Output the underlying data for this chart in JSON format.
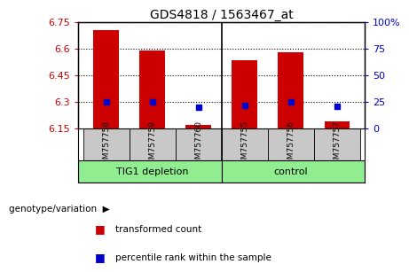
{
  "title": "GDS4818 / 1563467_at",
  "samples": [
    "GSM757758",
    "GSM757759",
    "GSM757760",
    "GSM757755",
    "GSM757756",
    "GSM757757"
  ],
  "red_values": [
    6.705,
    6.592,
    6.172,
    6.535,
    6.582,
    6.193
  ],
  "blue_values": [
    25,
    25,
    20,
    22,
    25,
    21
  ],
  "ylim_left": [
    6.15,
    6.75
  ],
  "ylim_right": [
    0,
    100
  ],
  "yticks_left": [
    6.15,
    6.3,
    6.45,
    6.6,
    6.75
  ],
  "ytick_labels_left": [
    "6.15",
    "6.3",
    "6.45",
    "6.6",
    "6.75"
  ],
  "yticks_right": [
    0,
    25,
    50,
    75,
    100
  ],
  "ytick_labels_right": [
    "0",
    "25",
    "50",
    "75",
    "100%"
  ],
  "group1_label": "TIG1 depletion",
  "group2_label": "control",
  "bar_color": "#cc0000",
  "point_color": "#0000cc",
  "group_color": "#90EE90",
  "sample_bg_color": "#c8c8c8",
  "bar_bottom": 6.15,
  "bar_width": 0.55,
  "legend_red_label": "transformed count",
  "legend_blue_label": "percentile rank within the sample",
  "genotype_label": "genotype/variation"
}
